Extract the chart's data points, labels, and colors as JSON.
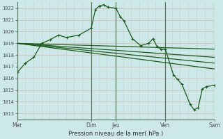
{
  "bg_color": "#cce8e8",
  "grid_color_h": "#c8d8c8",
  "grid_color_v": "#c8d8c8",
  "line_color": "#1a5c1a",
  "ylim": [
    1012.5,
    1022.5
  ],
  "yticks": [
    1013,
    1014,
    1015,
    1016,
    1017,
    1018,
    1019,
    1020,
    1021,
    1022
  ],
  "xlabel": "Pression niveau de la mer( hPa )",
  "xtick_labels": [
    "Mer",
    "Dim",
    "Jeu",
    "Ven",
    "Sam"
  ],
  "xtick_positions": [
    0,
    3,
    4,
    6,
    8
  ],
  "x_total": 8,
  "series1_x": [
    0,
    0.33,
    0.67,
    1.0,
    1.33,
    1.67,
    2.0,
    2.5,
    3.0,
    3.17,
    3.33,
    3.5,
    3.67,
    4.0,
    4.17,
    4.33,
    4.67,
    5.0,
    5.33,
    5.5,
    5.67,
    5.83,
    6.0,
    6.33,
    6.5,
    6.67,
    7.0,
    7.17,
    7.33,
    7.5,
    7.67,
    8.0
  ],
  "series1_y": [
    1016.5,
    1017.3,
    1017.8,
    1019.0,
    1019.3,
    1019.7,
    1019.5,
    1019.7,
    1020.3,
    1021.9,
    1022.2,
    1022.3,
    1022.1,
    1022.0,
    1021.3,
    1020.9,
    1019.4,
    1018.8,
    1019.0,
    1019.4,
    1018.7,
    1018.5,
    1018.5,
    1016.3,
    1015.9,
    1015.5,
    1013.8,
    1013.3,
    1013.5,
    1015.1,
    1015.3,
    1015.4
  ],
  "series2_x": [
    0,
    8
  ],
  "series2_y": [
    1019.0,
    1018.5
  ],
  "series3_x": [
    0,
    8
  ],
  "series3_y": [
    1019.0,
    1017.8
  ],
  "series4_x": [
    0,
    8
  ],
  "series4_y": [
    1019.0,
    1017.3
  ],
  "series5_x": [
    0,
    8
  ],
  "series5_y": [
    1019.0,
    1016.8
  ],
  "vline_positions": [
    3,
    4,
    6,
    8
  ]
}
